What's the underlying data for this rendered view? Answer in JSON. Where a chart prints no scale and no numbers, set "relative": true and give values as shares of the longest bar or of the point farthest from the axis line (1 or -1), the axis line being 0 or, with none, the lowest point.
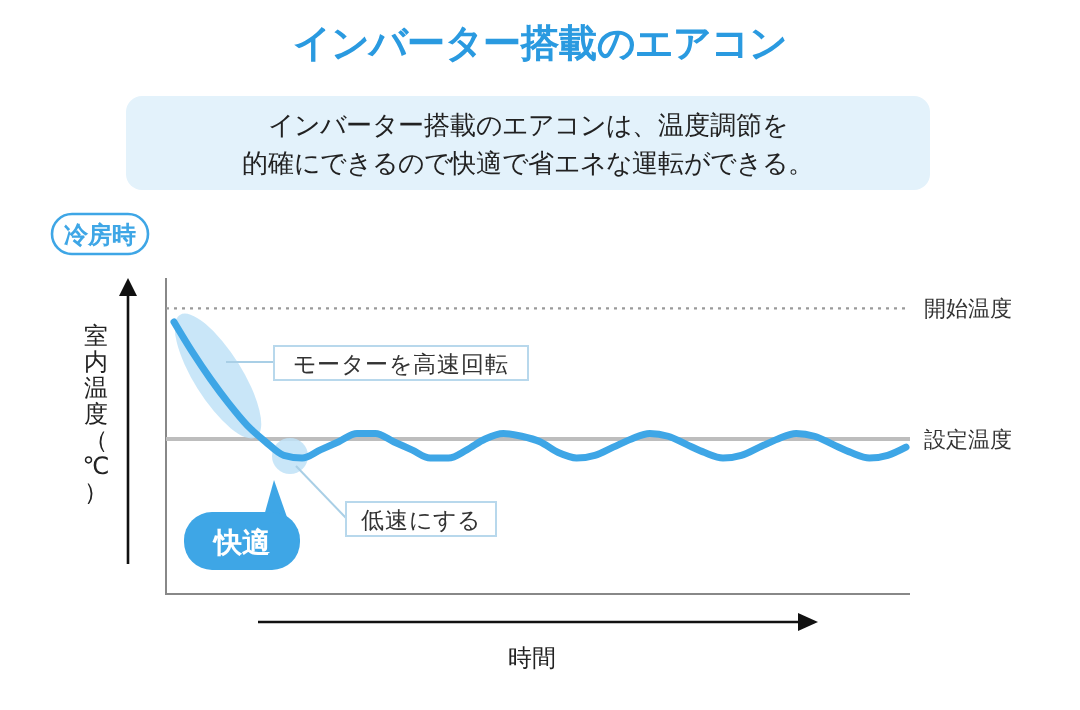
{
  "chart_data": {
    "type": "line",
    "relative": true,
    "title": "インバーター搭載のエアコン",
    "subtitle": "インバーター搭載のエアコンは、温度調節を的確にできるので快適で省エネな運転ができる。",
    "xlabel": "時間",
    "ylabel": "室内温度（℃）",
    "categories": [
      null,
      null,
      null,
      null,
      null,
      null,
      null,
      null,
      null,
      null,
      null,
      null,
      null,
      null,
      null,
      null,
      null,
      null,
      null,
      null,
      null,
      null,
      null,
      null,
      null,
      null,
      null,
      null,
      null,
      null,
      null,
      null,
      null,
      null,
      null,
      null,
      null,
      null,
      null,
      null,
      null
    ],
    "series": [
      {
        "color": "#3ea6e6",
        "values": [
          1.0,
          0.89,
          0.79,
          0.7,
          0.62,
          0.56,
          0.51,
          0.5,
          0.53,
          0.56,
          0.59,
          0.59,
          0.56,
          0.53,
          0.5,
          0.5,
          0.53,
          0.57,
          0.59,
          0.58,
          0.56,
          0.52,
          0.5,
          0.51,
          0.54,
          0.57,
          0.59,
          0.58,
          0.55,
          0.52,
          0.5,
          0.51,
          0.54,
          0.57,
          0.59,
          0.58,
          0.55,
          0.52,
          0.5,
          0.51,
          0.54
        ]
      }
    ],
    "ref_lines": [
      {
        "axis": "y",
        "value": 1.05,
        "label": "開始温度",
        "color": "#9a9a9a",
        "line_style": "dotted"
      },
      {
        "axis": "y",
        "value": 0.57,
        "label": "設定温度",
        "color": "#bdbdbd",
        "line_style": "solid"
      }
    ],
    "annotations": [
      "冷房時",
      "モーターを高速回転",
      "低速にする",
      "快適"
    ],
    "line_style": "solid"
  }
}
